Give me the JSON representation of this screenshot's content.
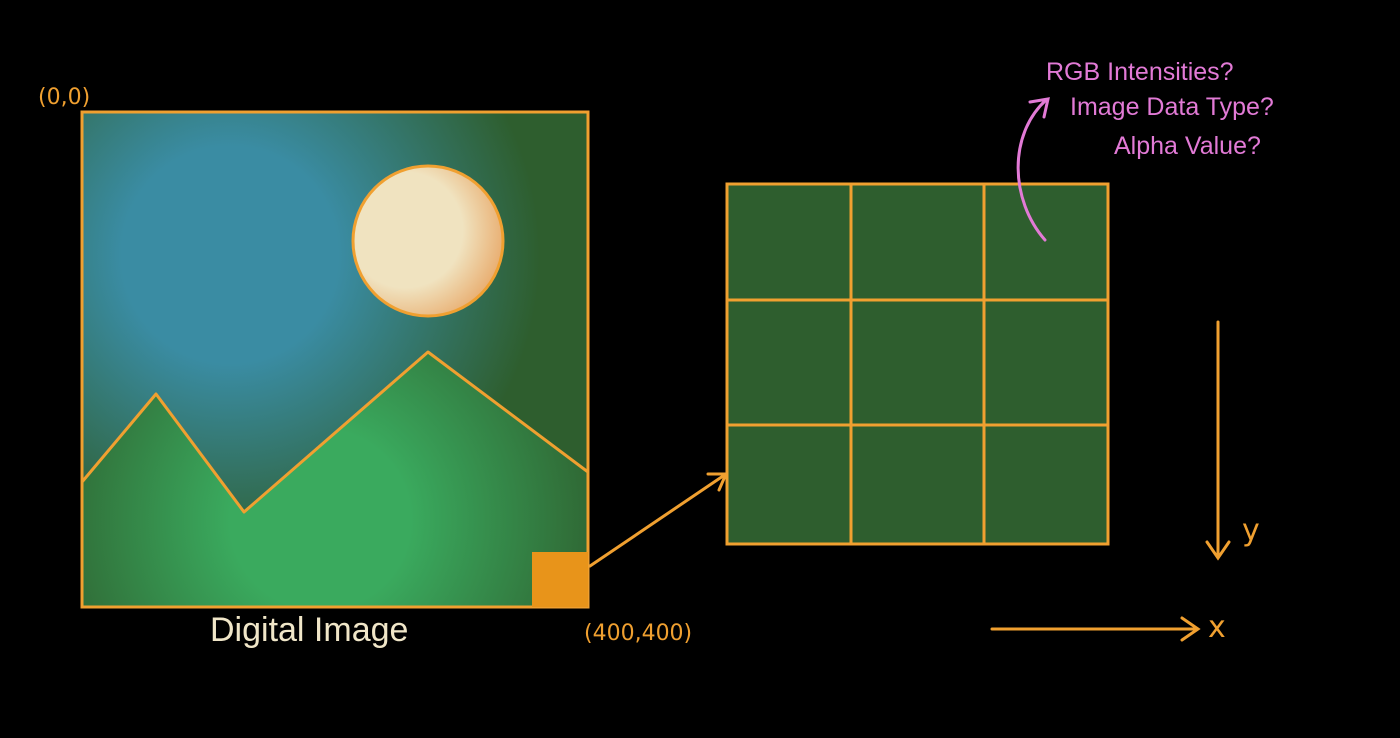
{
  "diagram": {
    "image_label": "Digital Image",
    "coord_origin": "(0,0)",
    "coord_corner": "(400,400)",
    "questions": [
      "RGB Intensities?",
      "Image Data Type?",
      "Alpha Value?"
    ],
    "axis_y_label": "y",
    "axis_x_label": "x"
  },
  "colors": {
    "background": "#000000",
    "outline": "#f0a030",
    "sky": "#3a8ca3",
    "grass": "#3aaa5e",
    "dark_green": "#2e5e2e",
    "sun": "#f0e3c0",
    "pixel_highlight": "#e8941a",
    "question_text": "#e27ad6",
    "label_text": "#f0e6c8"
  }
}
